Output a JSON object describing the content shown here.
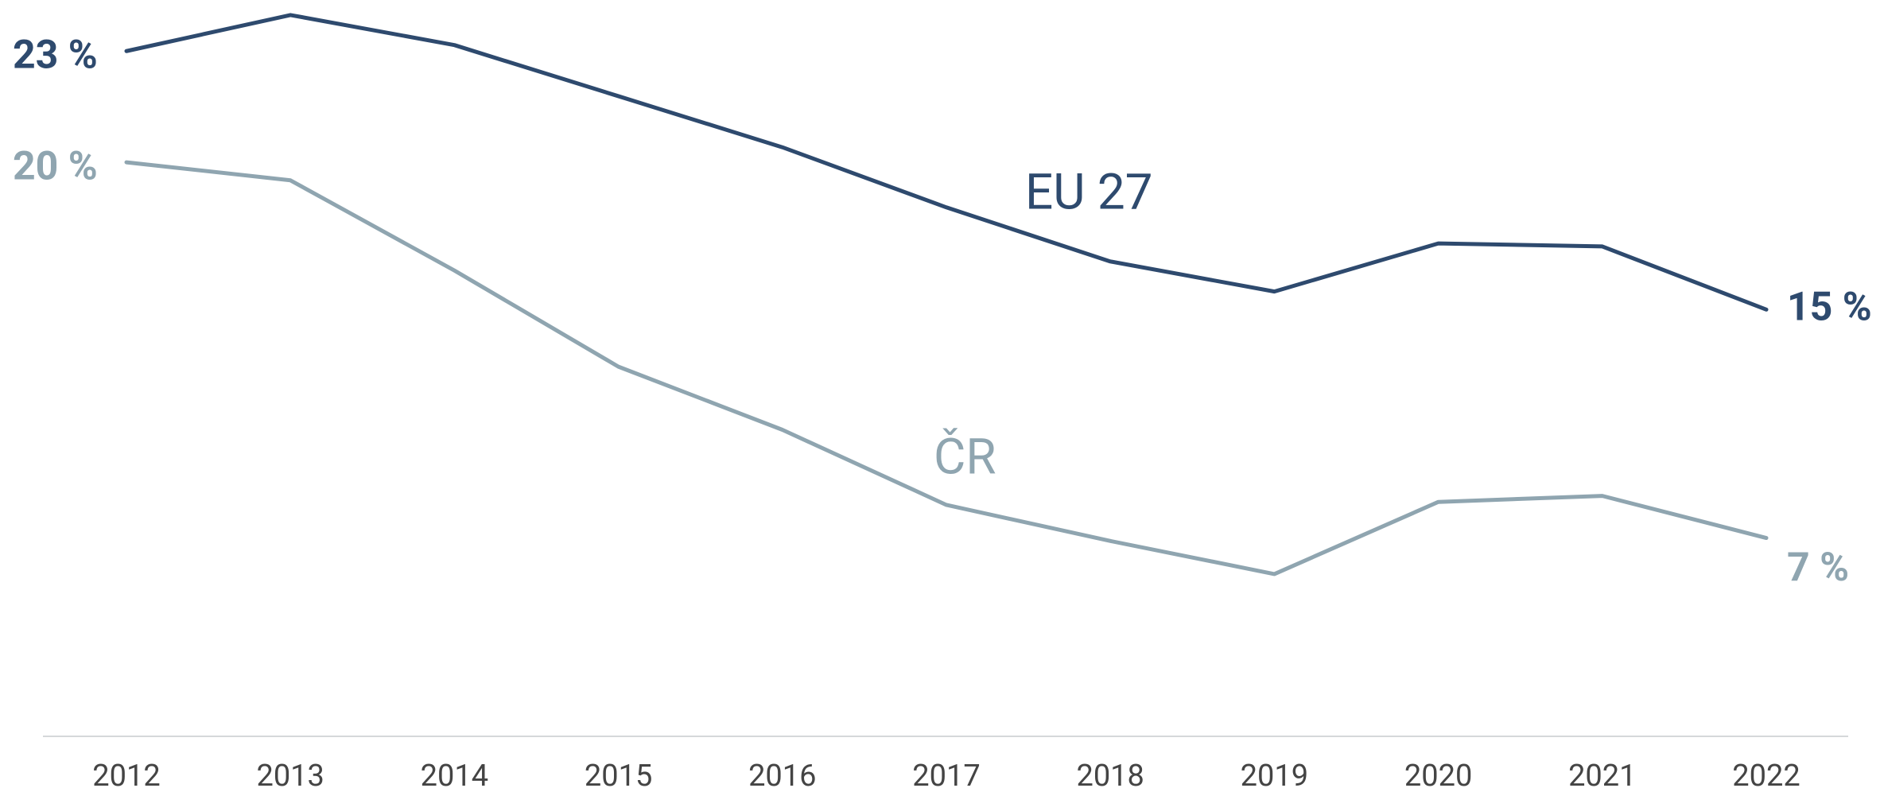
{
  "chart_data": {
    "type": "line",
    "categories": [
      "2012",
      "2013",
      "2014",
      "2015",
      "2016",
      "2017",
      "2018",
      "2019",
      "2020",
      "2021",
      "2022"
    ],
    "series": [
      {
        "name": "EU 27",
        "color": "#2e4a6e",
        "values": [
          23.3,
          24.5,
          23.5,
          21.8,
          20.1,
          18.1,
          16.3,
          15.3,
          16.9,
          16.8,
          14.7
        ],
        "value_labels": [
          "23 %",
          null,
          null,
          null,
          null,
          null,
          null,
          null,
          null,
          null,
          "15 %"
        ]
      },
      {
        "name": "ČR",
        "color": "#8fa5b0",
        "values": [
          19.6,
          19.0,
          16.0,
          12.8,
          10.7,
          8.2,
          7.0,
          5.9,
          8.3,
          8.5,
          7.1
        ],
        "value_labels": [
          "20 %",
          null,
          null,
          null,
          null,
          null,
          null,
          null,
          null,
          null,
          "7 %"
        ]
      }
    ],
    "ylim": [
      0.5,
      25
    ]
  }
}
